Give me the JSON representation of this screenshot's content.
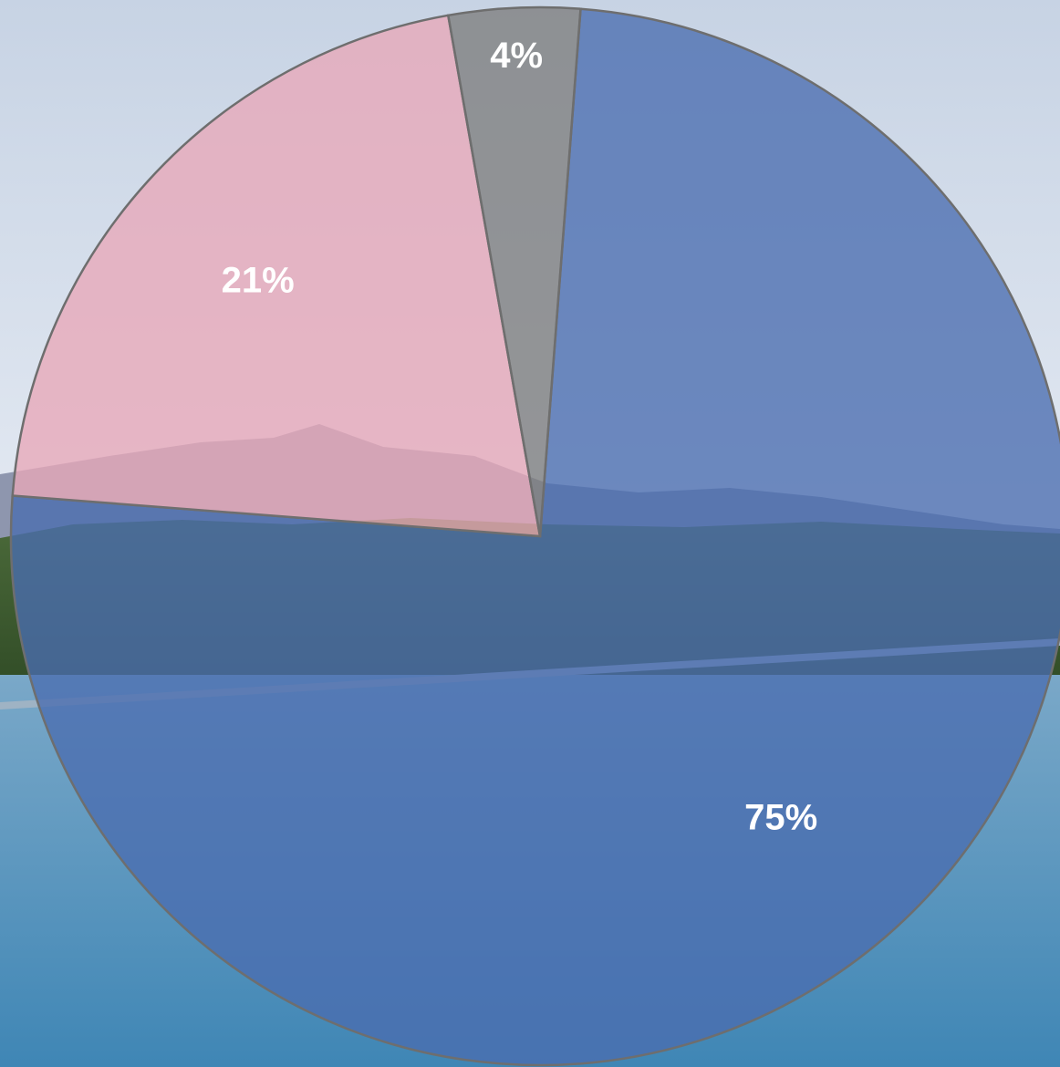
{
  "chart_data": {
    "type": "pie",
    "title": "",
    "slices": [
      {
        "label": "75%",
        "value": 75,
        "color": "#4a6db0"
      },
      {
        "label": "21%",
        "value": 21,
        "color": "#e8a8b8"
      },
      {
        "label": "4%",
        "value": 4,
        "color": "#7d7d7d"
      }
    ],
    "legend": "none"
  },
  "background": {
    "description_colors": {
      "sky": "#dfe7f1",
      "mountains": "#8a93ad",
      "trees": "#3d5a2e",
      "water": "#5f9bc4"
    }
  }
}
